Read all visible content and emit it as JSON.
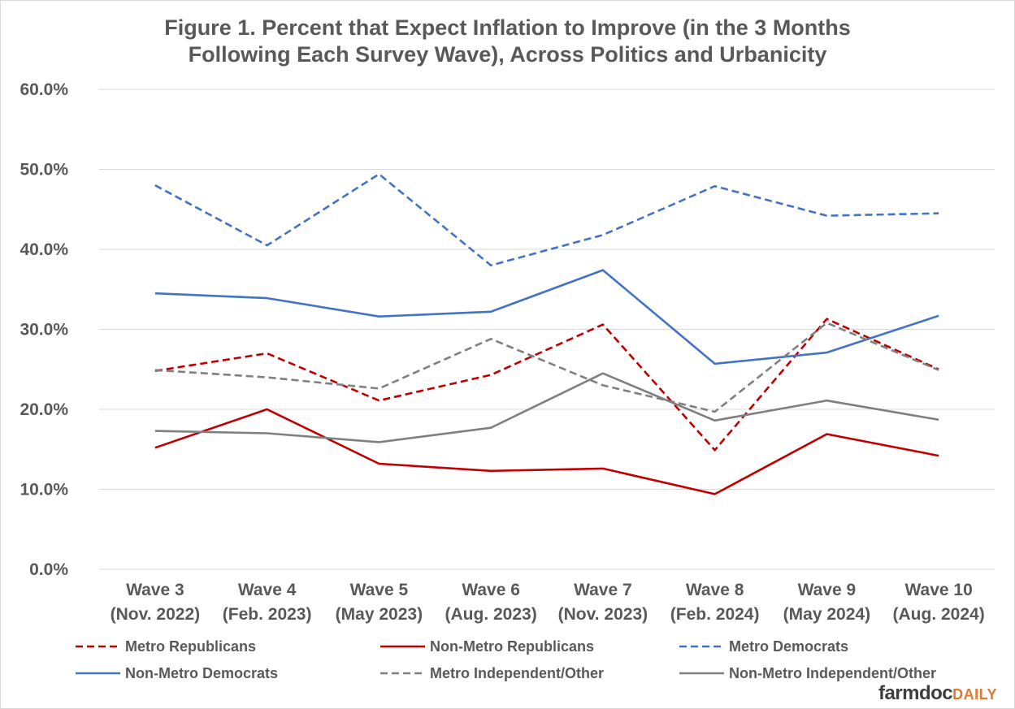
{
  "chart_data": {
    "type": "line",
    "title_lines": [
      "Figure 1. Percent that Expect Inflation to Improve (in the 3 Months",
      "Following Each Survey Wave), Across Politics and Urbanicity"
    ],
    "categories": [
      [
        "Wave 3",
        "(Nov. 2022)"
      ],
      [
        "Wave 4",
        "(Feb. 2023)"
      ],
      [
        "Wave 5",
        "(May 2023)"
      ],
      [
        "Wave 6",
        "(Aug. 2023)"
      ],
      [
        "Wave 7",
        "(Nov. 2023)"
      ],
      [
        "Wave 8",
        "(Feb. 2024)"
      ],
      [
        "Wave 9",
        "(May 2024)"
      ],
      [
        "Wave 10",
        "(Aug. 2024)"
      ]
    ],
    "y_ticks": [
      "0.0%",
      "10.0%",
      "20.0%",
      "30.0%",
      "40.0%",
      "50.0%",
      "60.0%"
    ],
    "ylim": [
      0,
      60
    ],
    "grid": true,
    "legend_position": "bottom",
    "series": [
      {
        "name": "Metro Republicans",
        "color": "#c00000",
        "dashed": true,
        "values": [
          24.8,
          27.0,
          21.1,
          24.3,
          30.6,
          14.9,
          31.3,
          25.0
        ]
      },
      {
        "name": "Non-Metro Republicans",
        "color": "#c00000",
        "dashed": false,
        "values": [
          15.2,
          20.0,
          13.2,
          12.3,
          12.6,
          9.4,
          16.9,
          14.2
        ]
      },
      {
        "name": "Metro Democrats",
        "color": "#4472c4",
        "dashed": true,
        "values": [
          48.0,
          40.5,
          49.4,
          38.0,
          41.8,
          47.9,
          44.2,
          44.5
        ]
      },
      {
        "name": "Non-Metro Democrats",
        "color": "#4472c4",
        "dashed": false,
        "values": [
          34.5,
          33.9,
          31.6,
          32.2,
          37.4,
          25.7,
          27.1,
          31.7
        ]
      },
      {
        "name": "Metro Independent/Other",
        "color": "#808080",
        "dashed": true,
        "values": [
          24.9,
          24.0,
          22.6,
          28.8,
          23.0,
          19.7,
          30.8,
          24.9
        ]
      },
      {
        "name": "Non-Metro Independent/Other",
        "color": "#808080",
        "dashed": false,
        "values": [
          17.3,
          17.0,
          15.9,
          17.7,
          24.5,
          18.6,
          21.1,
          18.7
        ]
      }
    ]
  },
  "watermark": {
    "part1": "farmdoc",
    "part2": "DAILY"
  }
}
